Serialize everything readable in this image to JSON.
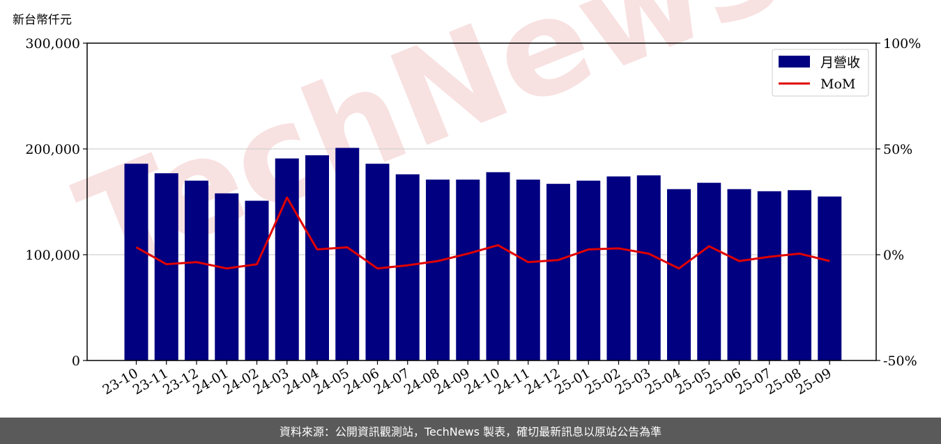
{
  "unit_label": "新台幣仟元",
  "footer_text": "資料來源：公開資訊觀測站，TechNews 製表，確切最新訊息以原站公告為準",
  "watermark_text": "TechNews",
  "colors": {
    "bar": "#000080",
    "line": "#e00000",
    "footer_bg": "#5a5a5a",
    "watermark": "#f3c9c9"
  },
  "chart_data": {
    "type": "bar",
    "categories": [
      "23-10",
      "23-11",
      "23-12",
      "24-01",
      "24-02",
      "24-03",
      "24-04",
      "24-05",
      "24-06",
      "24-07",
      "24-08",
      "24-09",
      "24-10",
      "24-11",
      "24-12",
      "25-01",
      "25-02",
      "25-03",
      "25-04",
      "25-05",
      "25-06",
      "25-07",
      "25-08",
      "25-09"
    ],
    "series": [
      {
        "name": "月營收",
        "type": "bar",
        "axis": "left",
        "values": [
          186000,
          177000,
          170000,
          158000,
          151000,
          191000,
          194000,
          201000,
          186000,
          176000,
          171000,
          171000,
          178000,
          171000,
          167000,
          170000,
          174000,
          175000,
          162000,
          168000,
          162000,
          160000,
          161000,
          155000
        ]
      },
      {
        "name": "MoM",
        "type": "line",
        "axis": "right",
        "values": [
          3.5,
          -4.5,
          -3.5,
          -6.5,
          -4.5,
          27,
          2.5,
          3.5,
          -6.5,
          -5,
          -3,
          0.5,
          4.5,
          -3.5,
          -2.5,
          2.5,
          3,
          0.5,
          -6.5,
          4,
          -3,
          -1,
          0.5,
          -3
        ]
      }
    ],
    "y_left": {
      "lim": [
        0,
        300000
      ],
      "ticks": [
        "0",
        "100,000",
        "200,000",
        "300,000"
      ],
      "tick_values": [
        0,
        100000,
        200000,
        300000
      ]
    },
    "y_right": {
      "lim": [
        -50,
        100
      ],
      "ticks": [
        "-50%",
        "0%",
        "50%",
        "100%"
      ],
      "tick_values": [
        -50,
        0,
        50,
        100
      ]
    },
    "grid": "horizontal",
    "legend": "top-right"
  }
}
